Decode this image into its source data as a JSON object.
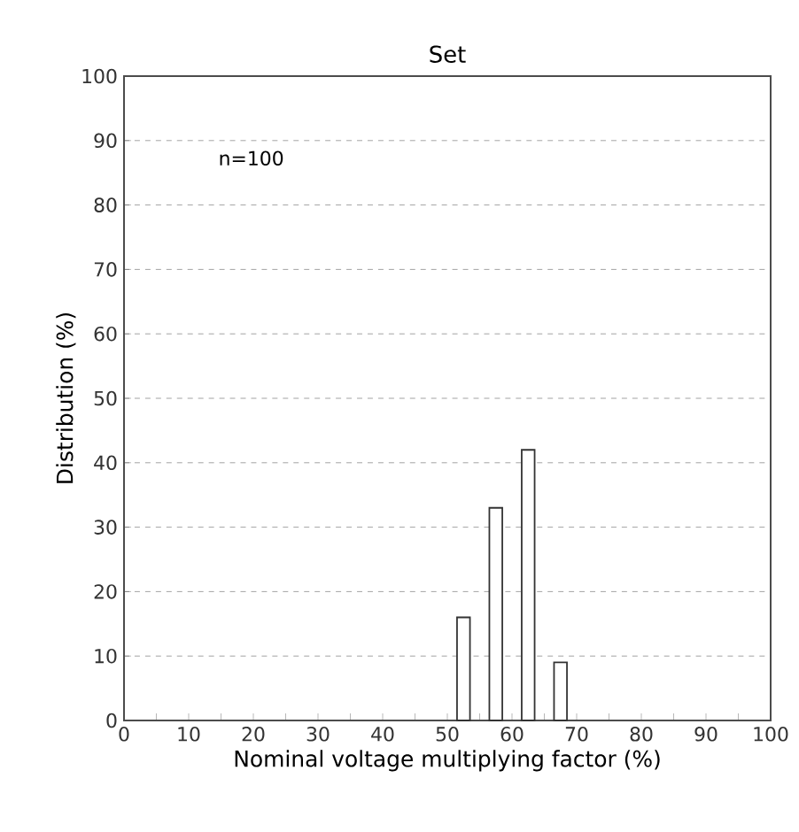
{
  "chart_data": {
    "type": "bar",
    "title": "Set",
    "xlabel": "Nominal voltage multiplying factor (%)",
    "ylabel": "Distribution (%)",
    "x": [
      52.5,
      57.5,
      62.5,
      67.5
    ],
    "series": [
      {
        "color": "#333333",
        "values": [
          16,
          33,
          42,
          9
        ]
      }
    ],
    "xlim": [
      0,
      100
    ],
    "xticks": [
      0,
      {
        "value": 5,
        "label": null
      },
      10,
      {
        "value": 15,
        "label": null
      },
      20,
      {
        "value": 25,
        "label": null
      },
      30,
      {
        "value": 35,
        "label": null
      },
      40,
      {
        "value": 45,
        "label": null
      },
      50,
      {
        "value": 55,
        "label": null
      },
      60,
      {
        "value": 65,
        "label": null
      },
      70,
      {
        "value": 75,
        "label": null
      },
      80,
      {
        "value": 85,
        "label": null
      },
      90,
      {
        "value": 95,
        "label": null
      },
      100
    ],
    "ylim": [
      0,
      100
    ],
    "yticks": [
      0,
      10,
      20,
      30,
      40,
      50,
      60,
      70,
      80,
      90,
      100
    ],
    "grid": "y",
    "annotations": [
      "n=100"
    ]
  }
}
